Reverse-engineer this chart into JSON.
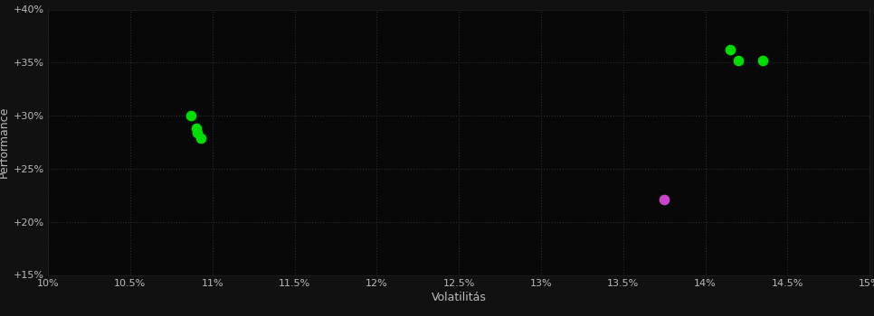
{
  "background_color": "#111111",
  "plot_bg_color": "#080808",
  "text_color": "#bbbbbb",
  "xlabel": "Volatilitás",
  "ylabel": "Performance",
  "xlim": [
    0.1,
    0.15
  ],
  "ylim": [
    0.15,
    0.4
  ],
  "xticks": [
    0.1,
    0.105,
    0.11,
    0.115,
    0.12,
    0.125,
    0.13,
    0.135,
    0.14,
    0.145,
    0.15
  ],
  "yticks": [
    0.15,
    0.2,
    0.25,
    0.3,
    0.35,
    0.4
  ],
  "green_points": [
    [
      0.1087,
      0.3
    ],
    [
      0.109,
      0.288
    ],
    [
      0.1091,
      0.284
    ],
    [
      0.1093,
      0.279
    ],
    [
      0.1415,
      0.362
    ],
    [
      0.142,
      0.352
    ],
    [
      0.1435,
      0.352
    ]
  ],
  "magenta_points": [
    [
      0.1375,
      0.221
    ]
  ],
  "green_color": "#00dd00",
  "magenta_color": "#cc44cc",
  "marker_size": 55,
  "font_size_ticks": 8,
  "font_size_labels": 9
}
